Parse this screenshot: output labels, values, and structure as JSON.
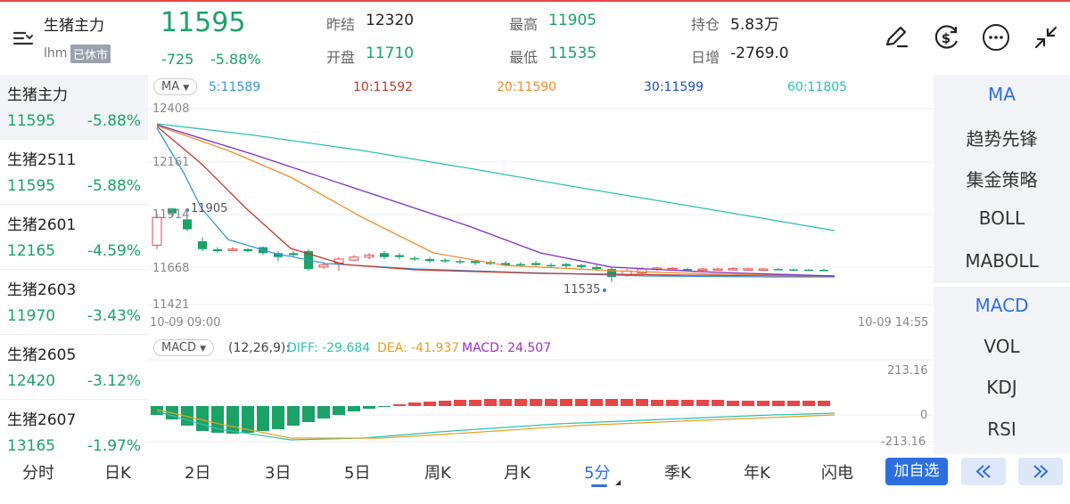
{
  "header": {
    "title": "生猪主力",
    "code": "lhm",
    "status": "已休市",
    "price": "11595",
    "change": "-725",
    "change_pct": "-5.88%",
    "stats": [
      {
        "label": "昨结",
        "value": "12320",
        "color": "#222222"
      },
      {
        "label": "开盘",
        "value": "11710",
        "color": "#1aa267"
      },
      {
        "label": "最高",
        "value": "11905",
        "color": "#1aa267"
      },
      {
        "label": "最低",
        "value": "11535",
        "color": "#1aa267"
      },
      {
        "label": "持仓",
        "value": "5.83万",
        "color": "#222222"
      },
      {
        "label": "日增",
        "value": "-2769.0",
        "color": "#222222"
      }
    ],
    "icons": [
      "draw-icon",
      "currency-icon",
      "more-icon",
      "collapse-icon"
    ]
  },
  "contracts": [
    {
      "name": "生猪主力",
      "price": "11595",
      "pct": "-5.88%"
    },
    {
      "name": "生猪2511",
      "price": "11595",
      "pct": "-5.88%"
    },
    {
      "name": "生猪2601",
      "price": "12165",
      "pct": "-4.59%"
    },
    {
      "name": "生猪2603",
      "price": "11970",
      "pct": "-3.43%"
    },
    {
      "name": "生猪2605",
      "price": "12420",
      "pct": "-3.12%"
    },
    {
      "name": "生猪2607",
      "price": "13165",
      "pct": "-1.97%"
    }
  ],
  "main_chart": {
    "indicator": "MA",
    "ma_labels": [
      {
        "text": "5:11589",
        "color": "#3a96dd"
      },
      {
        "text": "10:11592",
        "color": "#c0392b"
      },
      {
        "text": "20:11590",
        "color": "#f08c2e"
      },
      {
        "text": "30:11599",
        "color": "#7b2fc4"
      },
      {
        "text": "60:11805",
        "color": "#2bc2b0"
      }
    ],
    "y_ticks": [
      "12408",
      "12161",
      "11914",
      "11668",
      "11421"
    ],
    "high_marker": "11905",
    "low_marker": "11535",
    "time_start": "10-09 09:00",
    "time_end": "10-09 14:55"
  },
  "macd": {
    "indicator": "MACD",
    "params": "(12,26,9):",
    "diff": "DIFF: -29.684",
    "dea": "DEA: -41.937",
    "macd": "MACD: 24.507",
    "y_top": "213.16",
    "y_mid": "0",
    "y_bot": "-213.16"
  },
  "indicators_top": [
    "MA",
    "趋势先锋",
    "集金策略",
    "BOLL",
    "MABOLL"
  ],
  "indicators_bottom": [
    "MACD",
    "VOL",
    "KDJ",
    "RSI"
  ],
  "bottom_tabs": [
    "分时",
    "日K",
    "2日",
    "3日",
    "5日",
    "周K",
    "月K",
    "5分",
    "季K",
    "年K",
    "闪电"
  ],
  "watch_label": "加自选",
  "colors": {
    "up": "#e84545",
    "down": "#1aa267",
    "accent": "#2e6fe0"
  }
}
